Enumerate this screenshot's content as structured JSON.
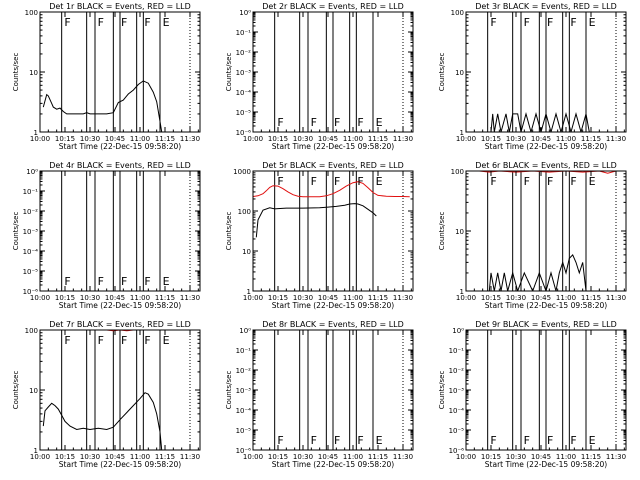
{
  "chart_data": [
    {
      "type": "line",
      "title": "Det 1r BLACK = Events, RED = LLD",
      "xlabel": "Start Time (22-Dec-15 09:58:20)",
      "ylabel": "Counts/sec",
      "scale": "log",
      "yticks": [
        "1",
        "10",
        "100"
      ],
      "ylim": [
        1,
        100
      ],
      "xticks": [
        "10:00",
        "10:15",
        "10:30",
        "10:45",
        "11:00",
        "11:15",
        "11:30"
      ],
      "xlim": [
        "10:00",
        "11:36"
      ],
      "markers": [
        "F",
        "F",
        "F",
        "F",
        "E"
      ],
      "series": [
        {
          "color": "#000000",
          "points": [
            [
              "10:02",
              2.6
            ],
            [
              "10:04",
              4.2
            ],
            [
              "10:05",
              4.0
            ],
            [
              "10:07",
              3.0
            ],
            [
              "10:08",
              2.6
            ],
            [
              "10:10",
              2.4
            ],
            [
              "10:12",
              2.5
            ],
            [
              "10:14",
              2.2
            ],
            [
              "10:16",
              2.0
            ],
            [
              "10:18",
              2.0
            ],
            [
              "10:22",
              2.0
            ],
            [
              "10:26",
              2.0
            ],
            [
              "10:28",
              2.1
            ],
            [
              "10:30",
              2.0
            ],
            [
              "10:35",
              2.0
            ],
            [
              "10:40",
              2.0
            ],
            [
              "10:44",
              2.1
            ],
            [
              "10:47",
              3.1
            ],
            [
              "10:50",
              3.4
            ],
            [
              "10:53",
              4.3
            ],
            [
              "10:56",
              5.0
            ],
            [
              "10:59",
              6.2
            ],
            [
              "11:02",
              7.1
            ],
            [
              "11:05",
              6.5
            ],
            [
              "11:08",
              4.6
            ],
            [
              "11:10",
              3.2
            ],
            [
              "11:12",
              1.5
            ],
            [
              "11:13",
              1.0
            ]
          ]
        }
      ]
    },
    {
      "type": "line",
      "title": "Det 2r BLACK = Events, RED = LLD",
      "xlabel": "Start Time (22-Dec-15 09:58:20)",
      "ylabel": "Counts/sec",
      "scale": "log",
      "yticks": [
        "10⁰",
        "10⁻¹",
        "10⁻²",
        "10⁻³",
        "10⁻⁴",
        "10⁻⁵",
        "10⁻⁶"
      ],
      "ylim": [
        1e-06,
        1
      ],
      "xticks": [
        "10:00",
        "10:15",
        "10:30",
        "10:45",
        "11:00",
        "11:15",
        "11:30"
      ],
      "xlim": [
        "10:00",
        "11:36"
      ],
      "markers": [
        "F",
        "F",
        "F",
        "F",
        "E"
      ],
      "series": []
    },
    {
      "type": "line",
      "title": "Det 3r BLACK = Events, RED = LLD",
      "xlabel": "Start Time (22-Dec-15 09:58:20)",
      "ylabel": "Counts/sec",
      "scale": "log",
      "yticks": [
        "1",
        "10",
        "100"
      ],
      "ylim": [
        1,
        100
      ],
      "xticks": [
        "10:00",
        "10:15",
        "10:30",
        "10:45",
        "11:00",
        "11:15",
        "11:30"
      ],
      "xlim": [
        "10:00",
        "11:36"
      ],
      "markers": [
        "F",
        "F",
        "F",
        "F",
        "E"
      ],
      "series": [
        {
          "color": "#000000",
          "points": [
            [
              "10:15",
              1.0
            ],
            [
              "10:16",
              2.0
            ],
            [
              "10:17",
              1.0
            ],
            [
              "10:19",
              2.0
            ],
            [
              "10:21",
              1.0
            ],
            [
              "10:24",
              2.0
            ],
            [
              "10:26",
              1.0
            ],
            [
              "10:28",
              2.0
            ],
            [
              "10:31",
              2.0
            ],
            [
              "10:33",
              1.0
            ],
            [
              "10:36",
              2.0
            ],
            [
              "10:39",
              1.0
            ],
            [
              "10:42",
              2.0
            ],
            [
              "10:45",
              1.0
            ],
            [
              "10:48",
              2.0
            ],
            [
              "10:51",
              1.0
            ],
            [
              "10:54",
              2.0
            ],
            [
              "10:57",
              1.0
            ],
            [
              "11:00",
              2.0
            ],
            [
              "11:03",
              1.0
            ],
            [
              "11:06",
              2.0
            ],
            [
              "11:09",
              1.0
            ],
            [
              "11:12",
              2.0
            ],
            [
              "11:14",
              1.0
            ]
          ]
        }
      ]
    },
    {
      "type": "line",
      "title": "Det 4r BLACK = Events, RED = LLD",
      "xlabel": "Start Time (22-Dec-15 09:58:20)",
      "ylabel": "Counts/sec",
      "scale": "log",
      "yticks": [
        "10⁰",
        "10⁻¹",
        "10⁻²",
        "10⁻³",
        "10⁻⁴",
        "10⁻⁵",
        "10⁻⁶"
      ],
      "ylim": [
        1e-06,
        1
      ],
      "xticks": [
        "10:00",
        "10:15",
        "10:30",
        "10:45",
        "11:00",
        "11:15",
        "11:30"
      ],
      "xlim": [
        "10:00",
        "11:36"
      ],
      "markers": [
        "F",
        "F",
        "F",
        "F",
        "E"
      ],
      "series": []
    },
    {
      "type": "line",
      "title": "Det 5r BLACK = Events, RED = LLD",
      "xlabel": "Start Time (22-Dec-15 09:58:20)",
      "ylabel": "Counts/sec",
      "scale": "log",
      "yticks": [
        "1",
        "10",
        "100",
        "1000"
      ],
      "ylim": [
        1,
        1000
      ],
      "xticks": [
        "10:00",
        "10:15",
        "10:30",
        "10:45",
        "11:00",
        "11:15",
        "11:30"
      ],
      "xlim": [
        "10:00",
        "11:36"
      ],
      "markers": [
        "F",
        "F",
        "F",
        "F",
        "E"
      ],
      "series": [
        {
          "color": "#000000",
          "points": [
            [
              "10:02",
              22
            ],
            [
              "10:03",
              60
            ],
            [
              "10:06",
              105
            ],
            [
              "10:10",
              120
            ],
            [
              "10:13",
              113
            ],
            [
              "10:15",
              115
            ],
            [
              "10:20",
              118
            ],
            [
              "10:30",
              118
            ],
            [
              "10:40",
              120
            ],
            [
              "10:45",
              125
            ],
            [
              "10:50",
              130
            ],
            [
              "10:55",
              140
            ],
            [
              "10:58",
              150
            ],
            [
              "11:01",
              153
            ],
            [
              "11:03",
              150
            ],
            [
              "11:06",
              135
            ],
            [
              "11:09",
              110
            ],
            [
              "11:12",
              90
            ],
            [
              "11:14",
              75
            ]
          ]
        },
        {
          "color": "#e01010",
          "points": [
            [
              "10:00",
              230
            ],
            [
              "10:03",
              240
            ],
            [
              "10:06",
              270
            ],
            [
              "10:08",
              320
            ],
            [
              "10:10",
              390
            ],
            [
              "10:12",
              430
            ],
            [
              "10:15",
              420
            ],
            [
              "10:18",
              360
            ],
            [
              "10:21",
              300
            ],
            [
              "10:24",
              255
            ],
            [
              "10:27",
              235
            ],
            [
              "10:30",
              228
            ],
            [
              "10:35",
              226
            ],
            [
              "10:40",
              228
            ],
            [
              "10:44",
              240
            ],
            [
              "10:48",
              270
            ],
            [
              "10:52",
              330
            ],
            [
              "10:56",
              420
            ],
            [
              "11:00",
              510
            ],
            [
              "11:03",
              540
            ],
            [
              "11:06",
              490
            ],
            [
              "11:09",
              380
            ],
            [
              "11:12",
              290
            ],
            [
              "11:15",
              245
            ],
            [
              "11:20",
              235
            ],
            [
              "11:25",
              230
            ],
            [
              "11:30",
              230
            ],
            [
              "11:34",
              228
            ]
          ]
        }
      ]
    },
    {
      "type": "line",
      "title": "Det 6r BLACK = Events, RED = LLD",
      "xlabel": "Start Time (22-Dec-15 09:58:20)",
      "ylabel": "Counts/sec",
      "scale": "log",
      "yticks": [
        "1",
        "10",
        "100"
      ],
      "ylim": [
        1,
        100
      ],
      "xticks": [
        "10:00",
        "10:15",
        "10:30",
        "10:45",
        "11:00",
        "11:15",
        "11:30"
      ],
      "xlim": [
        "10:00",
        "11:36"
      ],
      "markers": [
        "F",
        "F",
        "F",
        "F",
        "E"
      ],
      "series": [
        {
          "color": "#000000",
          "points": [
            [
              "10:14",
              1.0
            ],
            [
              "10:15",
              2.0
            ],
            [
              "10:17",
              1.0
            ],
            [
              "10:19",
              2.0
            ],
            [
              "10:21",
              1.0
            ],
            [
              "10:23",
              2.0
            ],
            [
              "10:25",
              1.0
            ],
            [
              "10:28",
              2.0
            ],
            [
              "10:31",
              1.0
            ],
            [
              "10:35",
              2.0
            ],
            [
              "10:40",
              1.0
            ],
            [
              "10:44",
              2.0
            ],
            [
              "10:48",
              1.0
            ],
            [
              "10:51",
              2.0
            ],
            [
              "10:54",
              1.0
            ],
            [
              "10:56",
              2.0
            ],
            [
              "10:58",
              3.0
            ],
            [
              "11:00",
              2.0
            ],
            [
              "11:02",
              3.5
            ],
            [
              "11:04",
              4.0
            ],
            [
              "11:06",
              3.0
            ],
            [
              "11:08",
              2.0
            ],
            [
              "11:10",
              3.0
            ],
            [
              "11:12",
              1.0
            ]
          ]
        },
        {
          "color": "#e01010",
          "points": [
            [
              "10:00",
              100
            ],
            [
              "10:08",
              100
            ],
            [
              "10:14",
              96
            ],
            [
              "10:20",
              100
            ],
            [
              "10:30",
              96
            ],
            [
              "10:40",
              100
            ],
            [
              "10:50",
              96
            ],
            [
              "11:00",
              100
            ],
            [
              "11:10",
              96
            ],
            [
              "11:20",
              100
            ],
            [
              "11:25",
              92
            ],
            [
              "11:30",
              100
            ]
          ]
        }
      ]
    },
    {
      "type": "line",
      "title": "Det 7r BLACK = Events, RED = LLD",
      "xlabel": "Start Time (22-Dec-15 09:58:20)",
      "ylabel": "Counts/sec",
      "scale": "log",
      "yticks": [
        "1",
        "10",
        "100"
      ],
      "ylim": [
        1,
        100
      ],
      "xticks": [
        "10:00",
        "10:15",
        "10:30",
        "10:45",
        "11:00",
        "11:15",
        "11:30"
      ],
      "xlim": [
        "10:00",
        "11:36"
      ],
      "markers": [
        "F",
        "F",
        "F",
        "F",
        "E"
      ],
      "series": [
        {
          "color": "#000000",
          "points": [
            [
              "10:02",
              2.5
            ],
            [
              "10:03",
              4.5
            ],
            [
              "10:05",
              5.2
            ],
            [
              "10:07",
              6.0
            ],
            [
              "10:09",
              5.5
            ],
            [
              "10:11",
              4.8
            ],
            [
              "10:13",
              3.8
            ],
            [
              "10:15",
              3.0
            ],
            [
              "10:18",
              2.5
            ],
            [
              "10:22",
              2.2
            ],
            [
              "10:26",
              2.3
            ],
            [
              "10:30",
              2.2
            ],
            [
              "10:35",
              2.3
            ],
            [
              "10:40",
              2.2
            ],
            [
              "10:44",
              2.4
            ],
            [
              "10:48",
              3.2
            ],
            [
              "10:52",
              4.2
            ],
            [
              "10:56",
              5.5
            ],
            [
              "11:00",
              7.2
            ],
            [
              "11:03",
              9.0
            ],
            [
              "11:05",
              8.5
            ],
            [
              "11:08",
              6.2
            ],
            [
              "11:10",
              4.0
            ],
            [
              "11:12",
              2.0
            ],
            [
              "11:13",
              1.0
            ]
          ]
        },
        {
          "color": "#e01010",
          "points": [
            [
              "10:40",
              100
            ],
            [
              "10:44",
              97
            ],
            [
              "10:48",
              100
            ],
            [
              "10:52",
              97
            ],
            [
              "10:56",
              100
            ]
          ]
        }
      ]
    },
    {
      "type": "line",
      "title": "Det 8r BLACK = Events, RED = LLD",
      "xlabel": "Start Time (22-Dec-15 09:58:20)",
      "ylabel": "Counts/sec",
      "scale": "log",
      "yticks": [
        "10⁰",
        "10⁻¹",
        "10⁻²",
        "10⁻³",
        "10⁻⁴",
        "10⁻⁵",
        "10⁻⁶"
      ],
      "ylim": [
        1e-06,
        1
      ],
      "xticks": [
        "10:00",
        "10:15",
        "10:30",
        "10:45",
        "11:00",
        "11:15",
        "11:30"
      ],
      "xlim": [
        "10:00",
        "11:36"
      ],
      "markers": [
        "F",
        "F",
        "F",
        "F",
        "E"
      ],
      "series": []
    },
    {
      "type": "line",
      "title": "Det 9r BLACK = Events, RED = LLD",
      "xlabel": "Start Time (22-Dec-15 09:58:20)",
      "ylabel": "Counts/sec",
      "scale": "log",
      "yticks": [
        "10⁰",
        "10⁻¹",
        "10⁻²",
        "10⁻³",
        "10⁻⁴",
        "10⁻⁵",
        "10⁻⁶"
      ],
      "ylim": [
        1e-06,
        1
      ],
      "xticks": [
        "10:00",
        "10:15",
        "10:30",
        "10:45",
        "11:00",
        "11:15",
        "11:30"
      ],
      "xlim": [
        "10:00",
        "11:36"
      ],
      "markers": [
        "F",
        "F",
        "F",
        "F",
        "E"
      ],
      "series": []
    }
  ]
}
